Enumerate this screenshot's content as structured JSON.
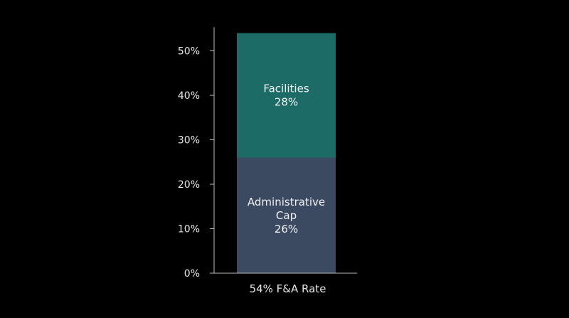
{
  "chart_data": {
    "type": "bar",
    "stacked": true,
    "categories": [
      "54% F&A Rate"
    ],
    "series": [
      {
        "name": "Administrative Cap",
        "values": [
          26
        ],
        "label_lines": [
          "Administrative",
          "Cap",
          "26%"
        ],
        "color": "#3b4a61"
      },
      {
        "name": "Facilities",
        "values": [
          28
        ],
        "label_lines": [
          "Facilities",
          "28%"
        ],
        "color": "#1d6b66"
      }
    ],
    "yticks": [
      0,
      10,
      20,
      30,
      40,
      50
    ],
    "ytick_labels": [
      "0%",
      "10%",
      "20%",
      "30%",
      "40%",
      "50%"
    ],
    "ylim": [
      0,
      55
    ],
    "grid": false,
    "legend": "none"
  },
  "colors": {
    "background": "#000000",
    "axis": "#bdbdbd",
    "text": "#e6e6e6"
  }
}
